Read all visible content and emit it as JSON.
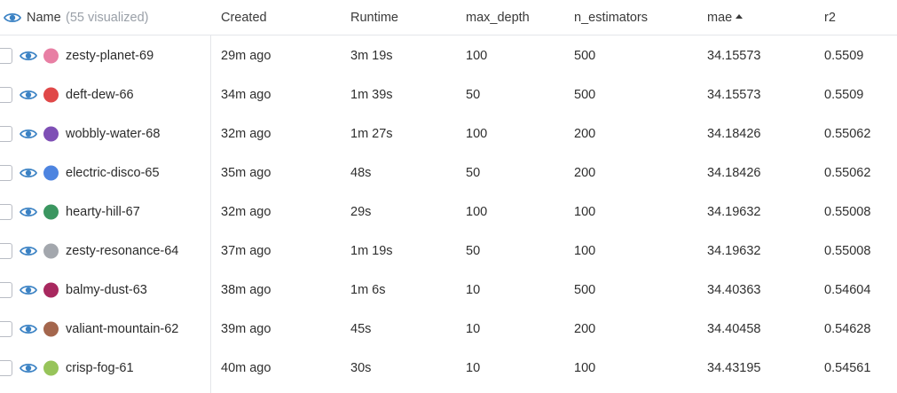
{
  "header": {
    "name_label": "Name",
    "visualized_note": "(55 visualized)",
    "columns": [
      "Created",
      "Runtime",
      "max_depth",
      "n_estimators",
      "mae",
      "r2"
    ]
  },
  "icons": {
    "visibility": "eye-icon",
    "sort": "sort-ascending-icon"
  },
  "colors": {
    "eye": "#3b82c4",
    "accent_border": "#e4e6ea"
  },
  "runs": [
    {
      "name": "zesty-planet-69",
      "color": "#e87fa4",
      "created": "29m ago",
      "runtime": "3m 19s",
      "max_depth": "100",
      "n_estimators": "500",
      "mae": "34.15573",
      "r2": "0.5509"
    },
    {
      "name": "deft-dew-66",
      "color": "#e04848",
      "created": "34m ago",
      "runtime": "1m 39s",
      "max_depth": "50",
      "n_estimators": "500",
      "mae": "34.15573",
      "r2": "0.5509"
    },
    {
      "name": "wobbly-water-68",
      "color": "#7e4fb5",
      "created": "32m ago",
      "runtime": "1m 27s",
      "max_depth": "100",
      "n_estimators": "200",
      "mae": "34.18426",
      "r2": "0.55062"
    },
    {
      "name": "electric-disco-65",
      "color": "#4d84e0",
      "created": "35m ago",
      "runtime": "48s",
      "max_depth": "50",
      "n_estimators": "200",
      "mae": "34.18426",
      "r2": "0.55062"
    },
    {
      "name": "hearty-hill-67",
      "color": "#3b9660",
      "created": "32m ago",
      "runtime": "29s",
      "max_depth": "100",
      "n_estimators": "100",
      "mae": "34.19632",
      "r2": "0.55008"
    },
    {
      "name": "zesty-resonance-64",
      "color": "#a3a7ad",
      "created": "37m ago",
      "runtime": "1m 19s",
      "max_depth": "50",
      "n_estimators": "100",
      "mae": "34.19632",
      "r2": "0.55008"
    },
    {
      "name": "balmy-dust-63",
      "color": "#a8285f",
      "created": "38m ago",
      "runtime": "1m 6s",
      "max_depth": "10",
      "n_estimators": "500",
      "mae": "34.40363",
      "r2": "0.54604"
    },
    {
      "name": "valiant-mountain-62",
      "color": "#a4664d",
      "created": "39m ago",
      "runtime": "45s",
      "max_depth": "10",
      "n_estimators": "200",
      "mae": "34.40458",
      "r2": "0.54628"
    },
    {
      "name": "crisp-fog-61",
      "color": "#97c45a",
      "created": "40m ago",
      "runtime": "30s",
      "max_depth": "10",
      "n_estimators": "100",
      "mae": "34.43195",
      "r2": "0.54561"
    }
  ]
}
